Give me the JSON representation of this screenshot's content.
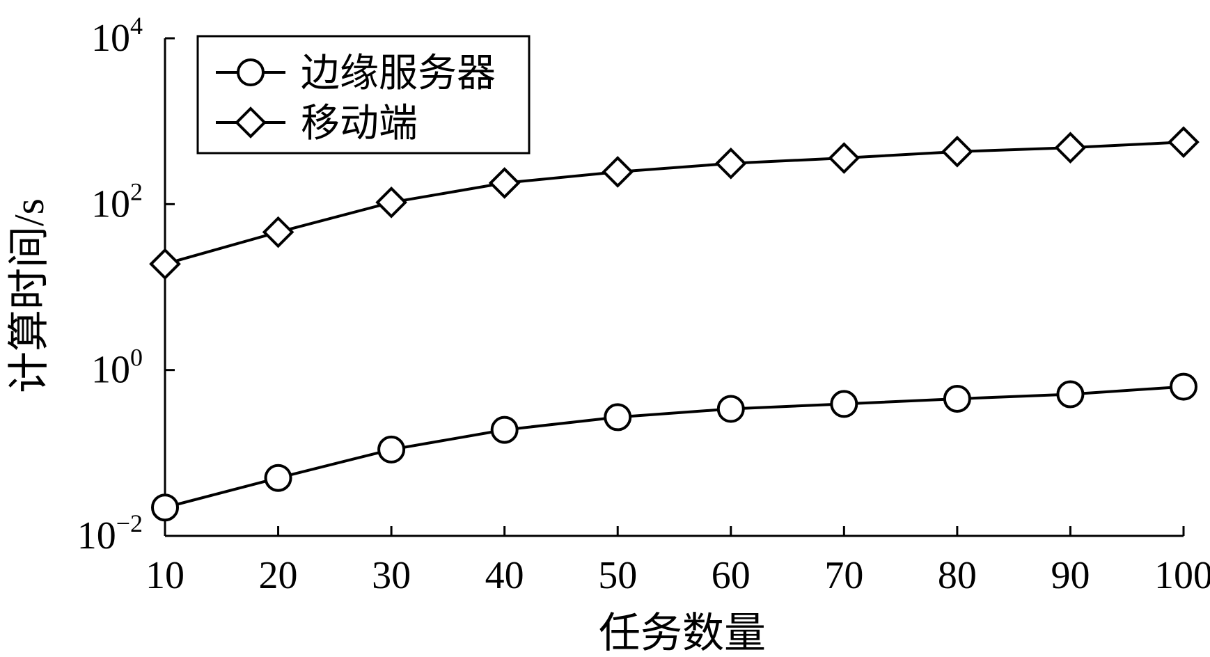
{
  "chart_data": {
    "type": "line",
    "title": "",
    "xlabel": "任务数量",
    "ylabel": "计算时间/s",
    "yscale": "log",
    "x": [
      10,
      20,
      30,
      40,
      50,
      60,
      70,
      80,
      90,
      100
    ],
    "xlim": [
      10,
      100
    ],
    "ylim": [
      0.01,
      10000
    ],
    "x_ticks": [
      "10",
      "20",
      "30",
      "40",
      "50",
      "60",
      "70",
      "80",
      "90",
      "100"
    ],
    "y_ticks": [
      {
        "value": 0.01,
        "base": "10",
        "exp": "−2"
      },
      {
        "value": 1,
        "base": "10",
        "exp": "0"
      },
      {
        "value": 100,
        "base": "10",
        "exp": "2"
      },
      {
        "value": 10000,
        "base": "10",
        "exp": "4"
      }
    ],
    "grid": false,
    "legend_position": "top-left",
    "series": [
      {
        "name": "边缘服务器",
        "marker": "circle",
        "values": [
          0.022,
          0.05,
          0.11,
          0.19,
          0.27,
          0.34,
          0.39,
          0.45,
          0.51,
          0.63
        ]
      },
      {
        "name": "移动端",
        "marker": "diamond",
        "values": [
          19,
          46,
          105,
          180,
          245,
          310,
          360,
          430,
          480,
          560
        ]
      }
    ],
    "colors": {
      "line": "#000000",
      "background": "#ffffff"
    }
  }
}
